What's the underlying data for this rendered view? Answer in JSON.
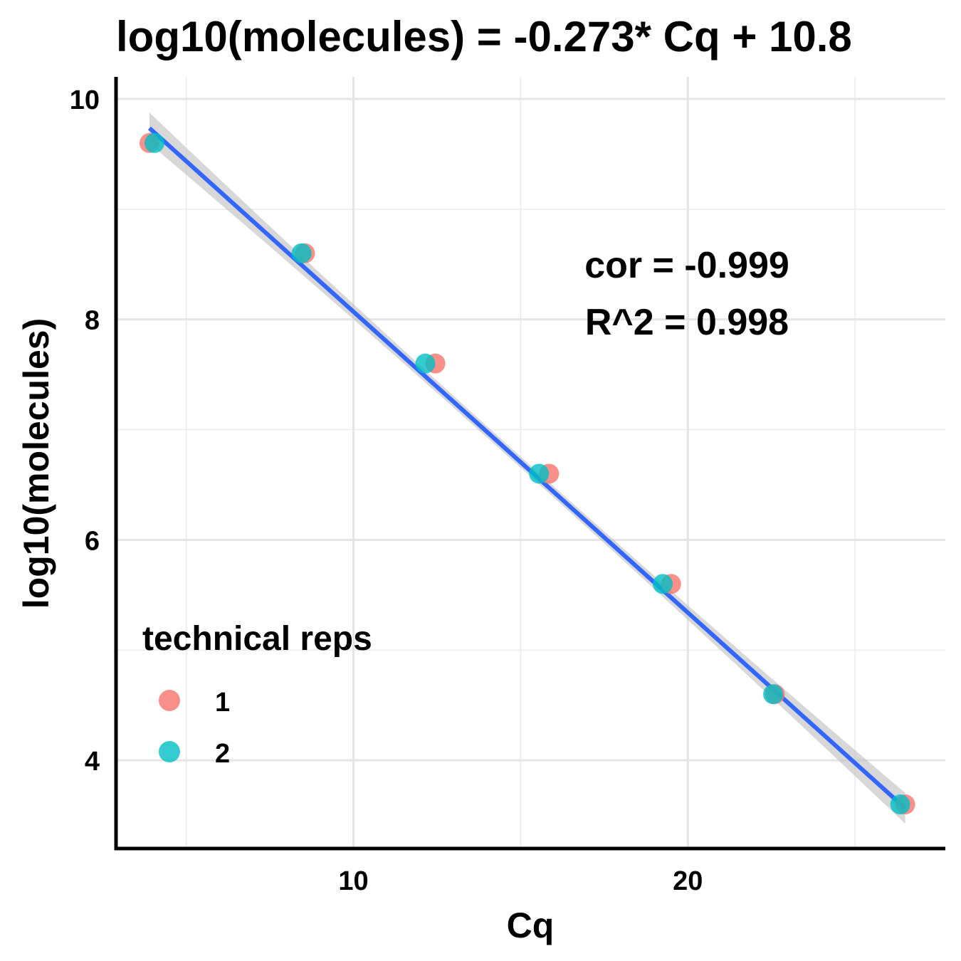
{
  "chart_data": {
    "type": "scatter",
    "title": "log10(molecules) = -0.273* Cq + 10.8",
    "xlabel": "Cq",
    "ylabel": "log10(molecules)",
    "xlim": [
      2.9,
      27.7
    ],
    "ylim": [
      3.2,
      10.2
    ],
    "x_ticks": [
      10,
      20
    ],
    "x_minor_ticks": [
      5,
      15,
      25
    ],
    "y_ticks": [
      4,
      6,
      8,
      10
    ],
    "y_minor_ticks": [
      5,
      7,
      9
    ],
    "grid": true,
    "legend_position": "bottom-left",
    "legend_title": "technical reps",
    "series": [
      {
        "name": "1",
        "color": "#F8766D",
        "x": [
          3.9,
          8.55,
          12.45,
          15.85,
          19.5,
          22.6,
          26.5
        ],
        "y": [
          9.6,
          8.6,
          7.6,
          6.6,
          5.6,
          4.6,
          3.6
        ]
      },
      {
        "name": "2",
        "color": "#00BFC4",
        "x": [
          4.05,
          8.45,
          12.15,
          15.55,
          19.25,
          22.55,
          26.35
        ],
        "y": [
          9.6,
          8.6,
          7.6,
          6.6,
          5.6,
          4.6,
          3.6
        ]
      }
    ],
    "fit": {
      "slope": -0.273,
      "intercept": 10.8,
      "x_range": [
        3.9,
        26.5
      ],
      "color": "#3366FF",
      "band_color": "#BEBEBE"
    },
    "annotations": [
      "cor = -0.999",
      "R^2 = 0.998"
    ]
  }
}
